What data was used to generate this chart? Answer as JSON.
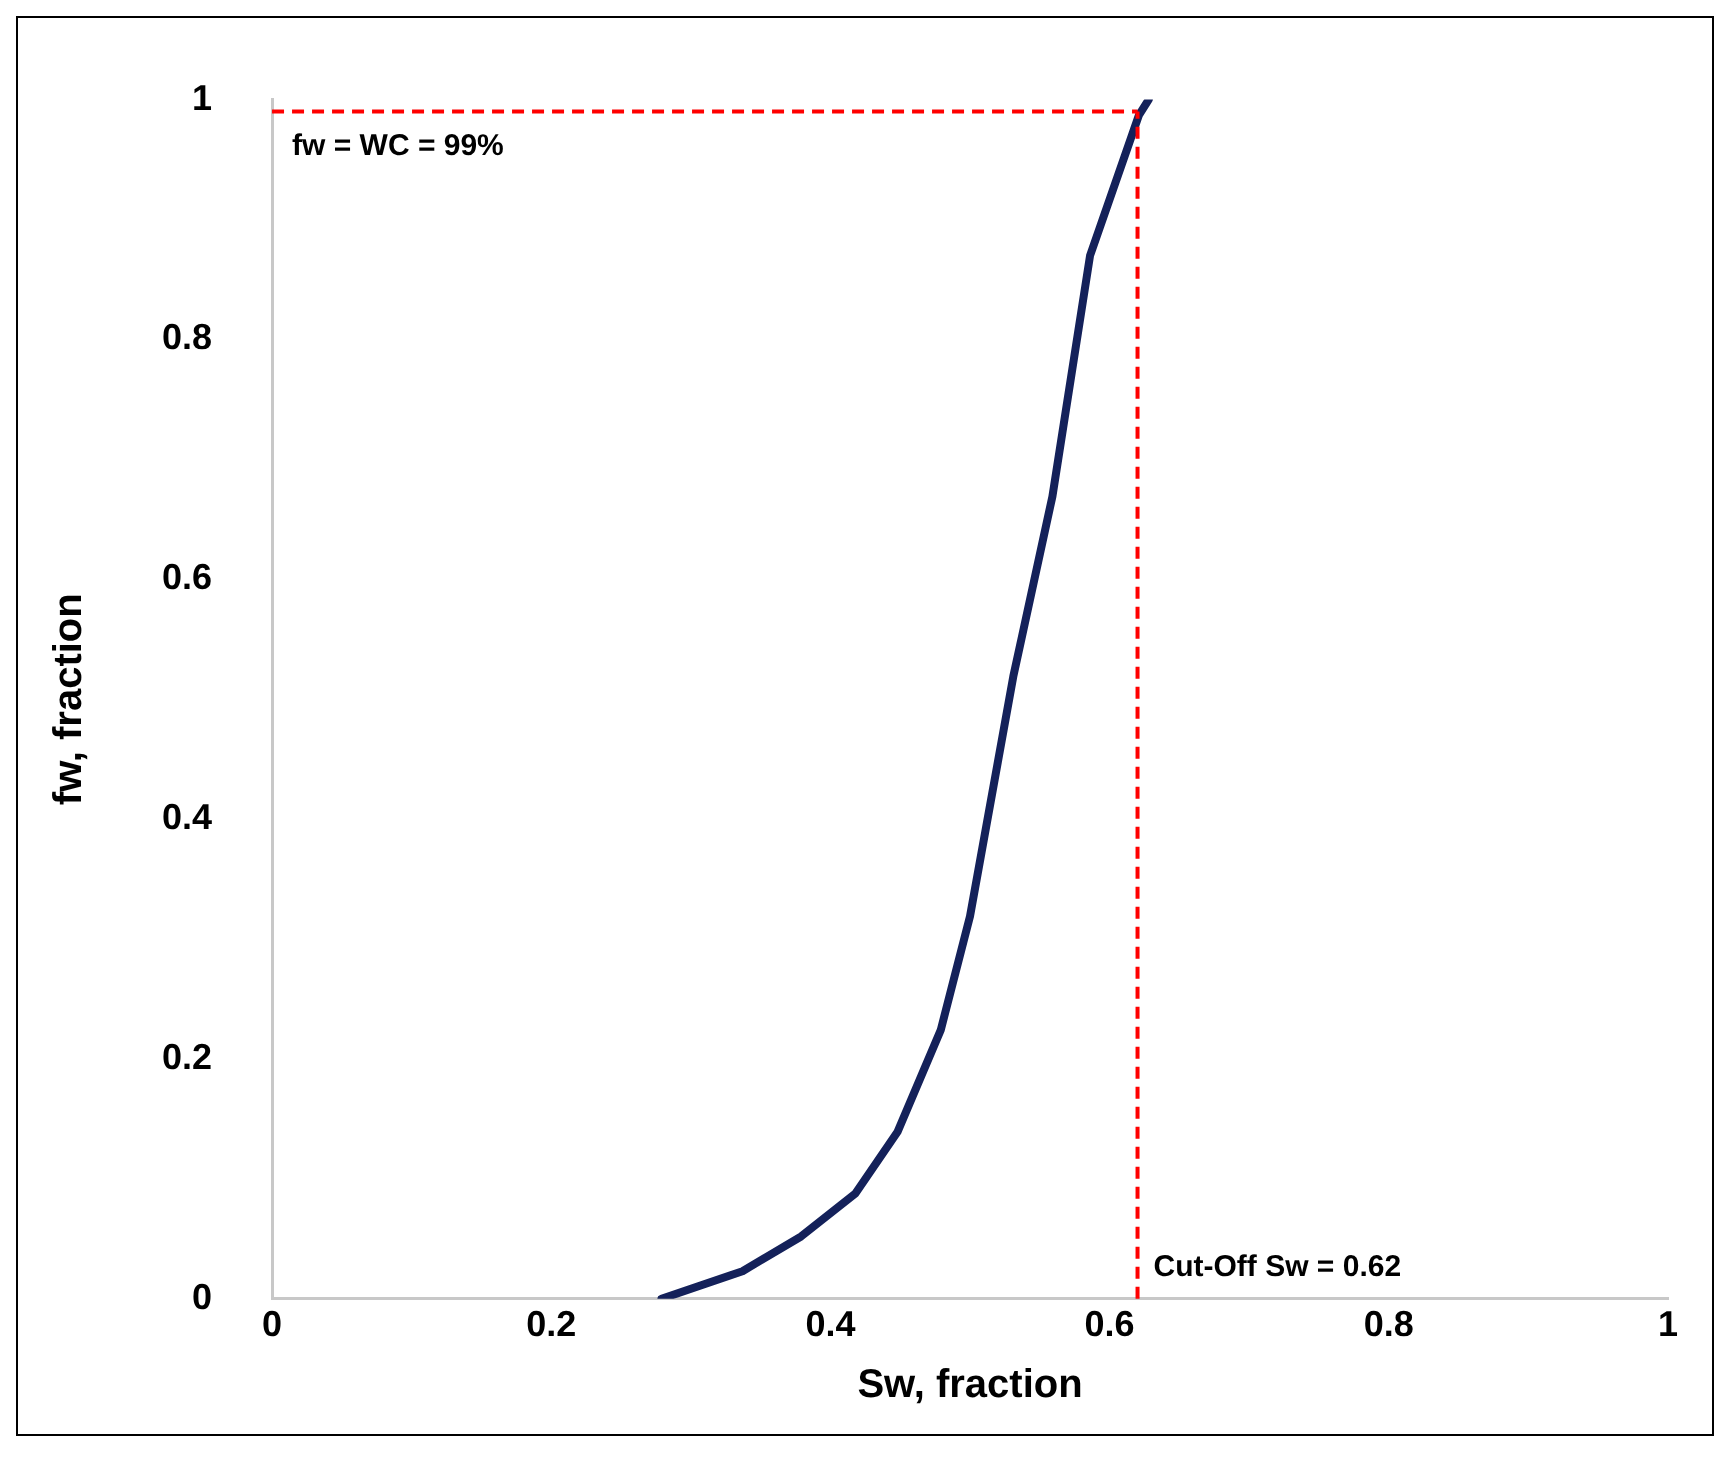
{
  "chart_data": {
    "type": "line",
    "xlabel": "Sw, fraction",
    "ylabel": "fw, fraction",
    "xlim": [
      0,
      1
    ],
    "xticks": [
      0,
      0.2,
      0.4,
      0.6,
      0.8,
      1
    ],
    "ylim": [
      0,
      1
    ],
    "yticks": [
      0,
      0.2,
      0.4,
      0.6,
      0.8,
      1
    ],
    "grid": false,
    "legend": false,
    "marker": "none",
    "line_style": "solid",
    "series": [
      {
        "color": "#14215a",
        "x": [
          0.279,
          0.337,
          0.379,
          0.418,
          0.448,
          0.479,
          0.5,
          0.531,
          0.559,
          0.586,
          0.621,
          0.628
        ],
        "values": [
          0,
          0.023,
          0.052,
          0.088,
          0.139,
          0.224,
          0.319,
          0.519,
          0.669,
          0.87,
          0.987,
          1
        ]
      }
    ],
    "ref_lines": [
      {
        "axis": "y",
        "value": 0.99,
        "label": "fw = WC = 99%",
        "color": "#ff0000",
        "line_style": "dashed"
      },
      {
        "axis": "x",
        "value": 0.62,
        "label": "Cut-Off Sw = 0.62",
        "color": "#ff0000",
        "line_style": "dashed"
      }
    ]
  }
}
